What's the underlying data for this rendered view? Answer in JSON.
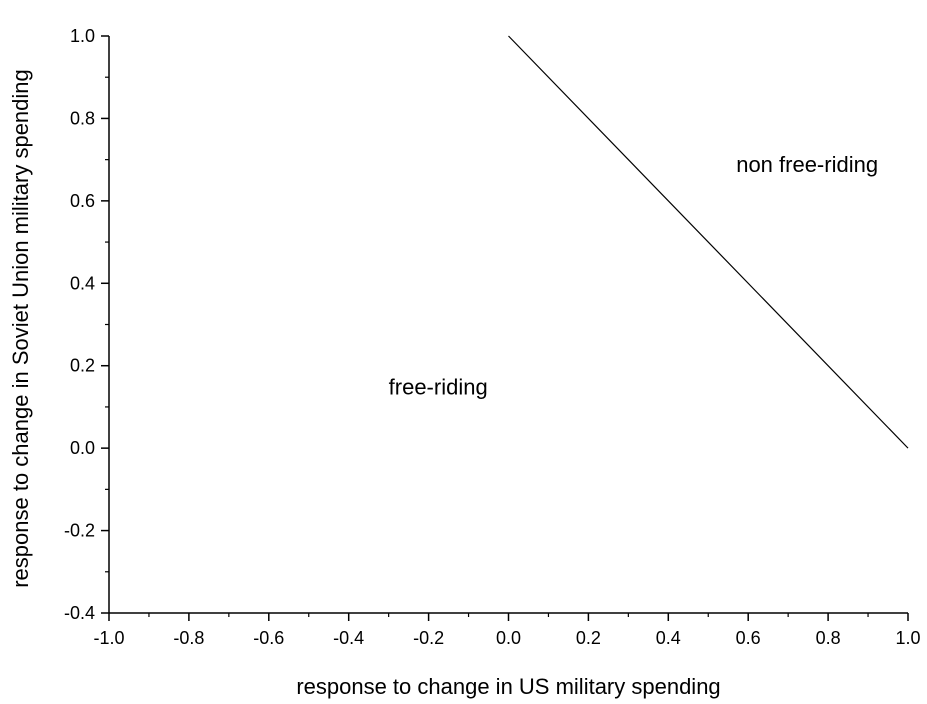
{
  "chart_data": {
    "type": "line",
    "title": "",
    "xlabel": "response to change in US military spending",
    "ylabel": "response to change in Soviet Union military spending",
    "xlim": [
      -1.0,
      1.0
    ],
    "ylim": [
      -0.4,
      1.0
    ],
    "x_ticks": [
      "-1.0",
      "-0.8",
      "-0.6",
      "-0.4",
      "-0.2",
      "0.0",
      "0.2",
      "0.4",
      "0.6",
      "0.8",
      "1.0"
    ],
    "y_ticks": [
      "-0.4",
      "-0.2",
      "0.0",
      "0.2",
      "0.4",
      "0.6",
      "0.8",
      "1.0"
    ],
    "grid": false,
    "series": [
      {
        "x": [
          0.0,
          1.0
        ],
        "y": [
          1.0,
          0.0
        ]
      }
    ],
    "annotations": [
      {
        "text": "free-riding",
        "x": -0.3,
        "y": 0.13
      },
      {
        "text": "non free-riding",
        "x": 0.57,
        "y": 0.67
      }
    ]
  }
}
